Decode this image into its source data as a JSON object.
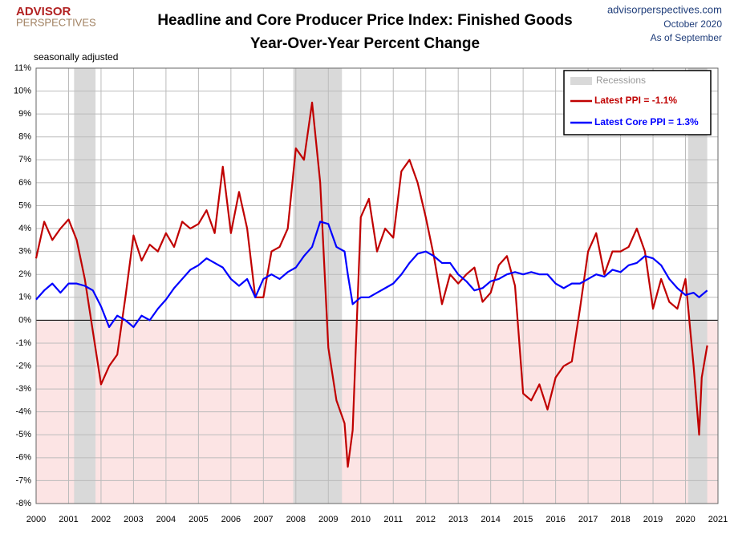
{
  "chart_data": {
    "type": "line",
    "title": [
      "Headline and Core Producer Price Index: Finished Goods",
      "Year-Over-Year Percent Change"
    ],
    "subtitle": "seasonally adjusted",
    "logo": [
      "ADVISOR",
      "PERSPECTIVES"
    ],
    "source": [
      "advisorperspectives.com",
      "October 2020",
      "As of September"
    ],
    "recessions_label": "Recessions",
    "recessions": [
      [
        2001.17,
        2001.83
      ],
      [
        2007.92,
        2009.42
      ],
      [
        2020.08,
        2020.67
      ]
    ],
    "recession_color": "#d9d9d9",
    "negative_fill": "#fce4e4",
    "grid": true,
    "legend": "top-right",
    "x": [
      2000,
      2000.25,
      2000.5,
      2000.75,
      2001,
      2001.25,
      2001.5,
      2001.75,
      2002,
      2002.25,
      2002.5,
      2002.75,
      2003,
      2003.25,
      2003.5,
      2003.75,
      2004,
      2004.25,
      2004.5,
      2004.75,
      2005,
      2005.25,
      2005.5,
      2005.75,
      2006,
      2006.25,
      2006.5,
      2006.75,
      2007,
      2007.25,
      2007.5,
      2007.75,
      2008,
      2008.25,
      2008.5,
      2008.75,
      2009,
      2009.25,
      2009.5,
      2009.6,
      2009.75,
      2010,
      2010.25,
      2010.5,
      2010.75,
      2011,
      2011.25,
      2011.5,
      2011.75,
      2012,
      2012.25,
      2012.5,
      2012.75,
      2013,
      2013.25,
      2013.5,
      2013.75,
      2014,
      2014.25,
      2014.5,
      2014.75,
      2015,
      2015.25,
      2015.5,
      2015.75,
      2016,
      2016.25,
      2016.5,
      2016.75,
      2017,
      2017.25,
      2017.5,
      2017.75,
      2018,
      2018.25,
      2018.5,
      2018.75,
      2019,
      2019.25,
      2019.5,
      2019.75,
      2020,
      2020.25,
      2020.42,
      2020.5,
      2020.67
    ],
    "series": [
      {
        "name": "Latest PPI = -1.1%",
        "color": "#c00000",
        "values": [
          2.7,
          4.3,
          3.5,
          4.0,
          4.4,
          3.5,
          1.8,
          -0.5,
          -2.8,
          -2.0,
          -1.5,
          1.0,
          3.7,
          2.6,
          3.3,
          3.0,
          3.8,
          3.2,
          4.3,
          4.0,
          4.2,
          4.8,
          3.8,
          6.7,
          3.8,
          5.6,
          4.0,
          1.0,
          1.0,
          3.0,
          3.2,
          4.0,
          7.5,
          7.0,
          9.5,
          6.0,
          -1.2,
          -3.5,
          -4.5,
          -6.4,
          -4.8,
          4.5,
          5.3,
          3.0,
          4.0,
          3.6,
          6.5,
          7.0,
          6.0,
          4.5,
          2.8,
          0.7,
          2.0,
          1.6,
          2.0,
          2.3,
          0.8,
          1.2,
          2.4,
          2.8,
          1.5,
          -3.2,
          -3.5,
          -2.8,
          -3.9,
          -2.5,
          -2.0,
          -1.8,
          0.5,
          3.0,
          3.8,
          2.0,
          3.0,
          3.0,
          3.2,
          4.0,
          3.0,
          0.5,
          1.8,
          0.8,
          0.5,
          1.8,
          -2.0,
          -5.0,
          -2.5,
          -1.1
        ]
      },
      {
        "name": "Latest Core PPI = 1.3%",
        "color": "#0000ff",
        "values": [
          0.9,
          1.3,
          1.6,
          1.2,
          1.6,
          1.6,
          1.5,
          1.3,
          0.6,
          -0.3,
          0.2,
          0.0,
          -0.3,
          0.2,
          0.0,
          0.5,
          0.9,
          1.4,
          1.8,
          2.2,
          2.4,
          2.7,
          2.5,
          2.3,
          1.8,
          1.5,
          1.8,
          1.0,
          1.8,
          2.0,
          1.8,
          2.1,
          2.3,
          2.8,
          3.2,
          4.3,
          4.2,
          3.2,
          3.0,
          2.0,
          0.7,
          1.0,
          1.0,
          1.2,
          1.4,
          1.6,
          2.0,
          2.5,
          2.9,
          3.0,
          2.8,
          2.5,
          2.5,
          2.0,
          1.7,
          1.3,
          1.4,
          1.7,
          1.8,
          2.0,
          2.1,
          2.0,
          2.1,
          2.0,
          2.0,
          1.6,
          1.4,
          1.6,
          1.6,
          1.8,
          2.0,
          1.9,
          2.2,
          2.1,
          2.4,
          2.5,
          2.8,
          2.7,
          2.4,
          1.8,
          1.4,
          1.1,
          1.2,
          1.0,
          1.1,
          1.3
        ]
      }
    ],
    "xlim": [
      2000,
      2021
    ],
    "xticks": [
      2000,
      2001,
      2002,
      2003,
      2004,
      2005,
      2006,
      2007,
      2008,
      2009,
      2010,
      2011,
      2012,
      2013,
      2014,
      2015,
      2016,
      2017,
      2018,
      2019,
      2020,
      2021
    ],
    "ylim": [
      -8,
      11
    ],
    "yticks": [
      {
        "value": 11,
        "label": "11%"
      },
      {
        "value": 10,
        "label": "10%"
      },
      {
        "value": 9,
        "label": "9%"
      },
      {
        "value": 8,
        "label": "8%"
      },
      {
        "value": 7,
        "label": "7%"
      },
      {
        "value": 6,
        "label": "6%"
      },
      {
        "value": 5,
        "label": "5%"
      },
      {
        "value": 4,
        "label": "4%"
      },
      {
        "value": 3,
        "label": "3%"
      },
      {
        "value": 2,
        "label": "2%"
      },
      {
        "value": 1,
        "label": "1%"
      },
      {
        "value": 0,
        "label": "0%"
      },
      {
        "value": -1,
        "label": "-1%"
      },
      {
        "value": -2,
        "label": "-2%"
      },
      {
        "value": -3,
        "label": "-3%"
      },
      {
        "value": -4,
        "label": "-4%"
      },
      {
        "value": -5,
        "label": "-5%"
      },
      {
        "value": -6,
        "label": "-6%"
      },
      {
        "value": -7,
        "label": "-7%"
      },
      {
        "value": -8,
        "label": "-8%"
      }
    ]
  }
}
